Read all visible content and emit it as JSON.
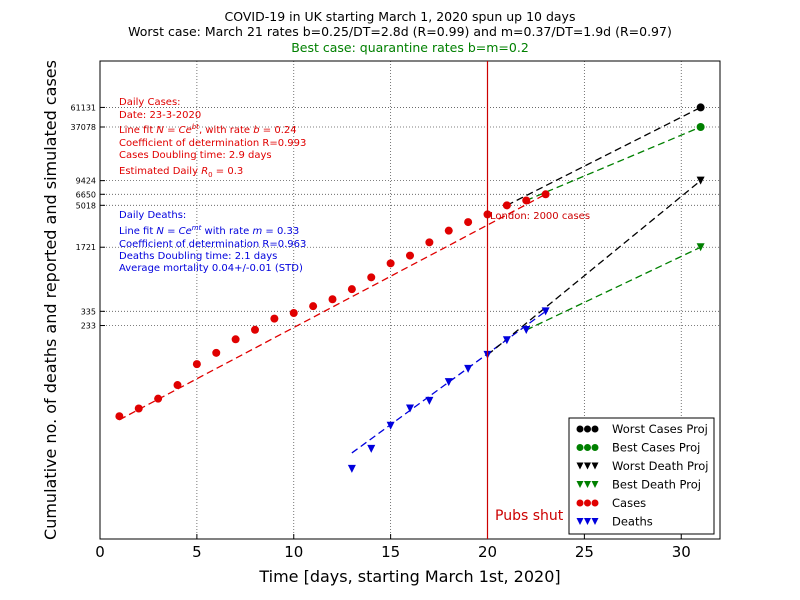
{
  "chart_data": {
    "type": "scatter",
    "title": "COVID-19 in UK starting March 1, 2020 spun up 10 days",
    "subtitle": "Worst case: March 21 rates b=0.25/DT=2.8d (R=0.99) and m=0.37/DT=1.9d (R=0.97)",
    "subtitle2": "Best case: quarantine rates b=m=0.2",
    "xlabel": "Time [days, starting March 1st, 2020]",
    "ylabel": "Cumulative no. of deaths and reported and simulated cases",
    "xlim": [
      0,
      32
    ],
    "xticks": [
      "0",
      "5",
      "10",
      "15",
      "20",
      "25",
      "30"
    ],
    "y_scale": "log",
    "ylim": [
      1,
      200000
    ],
    "yticks": [
      {
        "label": "61131",
        "value": 61131
      },
      {
        "label": "37078",
        "value": 37078
      },
      {
        "label": "9424",
        "value": 9424
      },
      {
        "label": "6650",
        "value": 6650
      },
      {
        "label": "5018",
        "value": 5018
      },
      {
        "label": "1721",
        "value": 1721
      },
      {
        "label": "335",
        "value": 335
      },
      {
        "label": "233",
        "value": 233
      }
    ],
    "grid": "dotted",
    "legend_placement": "lower-right",
    "series": [
      {
        "name": "Worst Cases Proj",
        "marker": "circle",
        "color": "#000000",
        "x": [
          31
        ],
        "y": [
          61131
        ]
      },
      {
        "name": "Best Cases Proj",
        "marker": "circle",
        "color": "#008000",
        "x": [
          31
        ],
        "y": [
          37078
        ]
      },
      {
        "name": "Worst Death Proj",
        "marker": "triangle-down",
        "color": "#000000",
        "x": [
          31
        ],
        "y": [
          9424
        ]
      },
      {
        "name": "Best Death Proj",
        "marker": "triangle-down",
        "color": "#008000",
        "x": [
          31
        ],
        "y": [
          1721
        ]
      },
      {
        "name": "Cases",
        "marker": "circle",
        "color": "#e00000",
        "x": [
          1,
          2,
          3,
          4,
          5,
          6,
          7,
          8,
          9,
          10,
          11,
          12,
          13,
          14,
          15,
          16,
          17,
          18,
          19,
          20,
          21,
          22,
          23
        ],
        "y": [
          23,
          28,
          36,
          51,
          87,
          116,
          164,
          209,
          278,
          321,
          382,
          456,
          590,
          798,
          1140,
          1391,
          1950,
          2626,
          3269,
          3983,
          5018,
          5683,
          6650
        ]
      },
      {
        "name": "Deaths",
        "marker": "triangle-down",
        "color": "#0000dd",
        "x": [
          13,
          14,
          15,
          16,
          17,
          18,
          19,
          20,
          21,
          22,
          23
        ],
        "y": [
          6,
          10,
          18,
          28,
          34,
          55,
          77,
          110,
          160,
          208,
          335
        ]
      }
    ],
    "fit_lines": [
      {
        "style": "dashed",
        "color": "#e00000",
        "from": [
          1,
          21
        ],
        "to": [
          23,
          6650
        ]
      },
      {
        "style": "dashed",
        "color": "#0000dd",
        "from": [
          13,
          9
        ],
        "to": [
          23,
          335
        ]
      },
      {
        "style": "dashed",
        "color": "#000000",
        "from": [
          21,
          5018
        ],
        "to": [
          31,
          61131
        ]
      },
      {
        "style": "dashed",
        "color": "#008000",
        "from": [
          22,
          5683
        ],
        "to": [
          31,
          37078
        ]
      },
      {
        "style": "dashed",
        "color": "#000000",
        "from": [
          20,
          110
        ],
        "to": [
          31,
          9424
        ]
      },
      {
        "style": "dashed",
        "color": "#008000",
        "from": [
          22,
          208
        ],
        "to": [
          31,
          1721
        ]
      }
    ],
    "vline": {
      "x": 20,
      "color": "#cc0000",
      "label": "Pubs shut"
    },
    "annotations": {
      "cases_box": {
        "color": "#e00000",
        "lines": [
          "Daily Cases:",
          "Date: 23-3-2020",
          "Line fit N = Ce^{bt} with rate b = 0.24",
          "Coefficient of determination R=0.993",
          "Cases Doubling time: 2.9 days",
          "Estimated Daily R_0 = 0.3"
        ]
      },
      "deaths_box": {
        "color": "#0000dd",
        "lines": [
          "Daily Deaths:",
          "Line fit N = Ce^{mt} with rate m = 0.33",
          "Coefficient of determination R=0.963",
          "Deaths Doubling time: 2.1 days",
          "Average mortality 0.04+/-0.01 (STD)"
        ]
      },
      "london": {
        "text": "London: 2000 cases",
        "color": "#cc0000"
      }
    }
  }
}
